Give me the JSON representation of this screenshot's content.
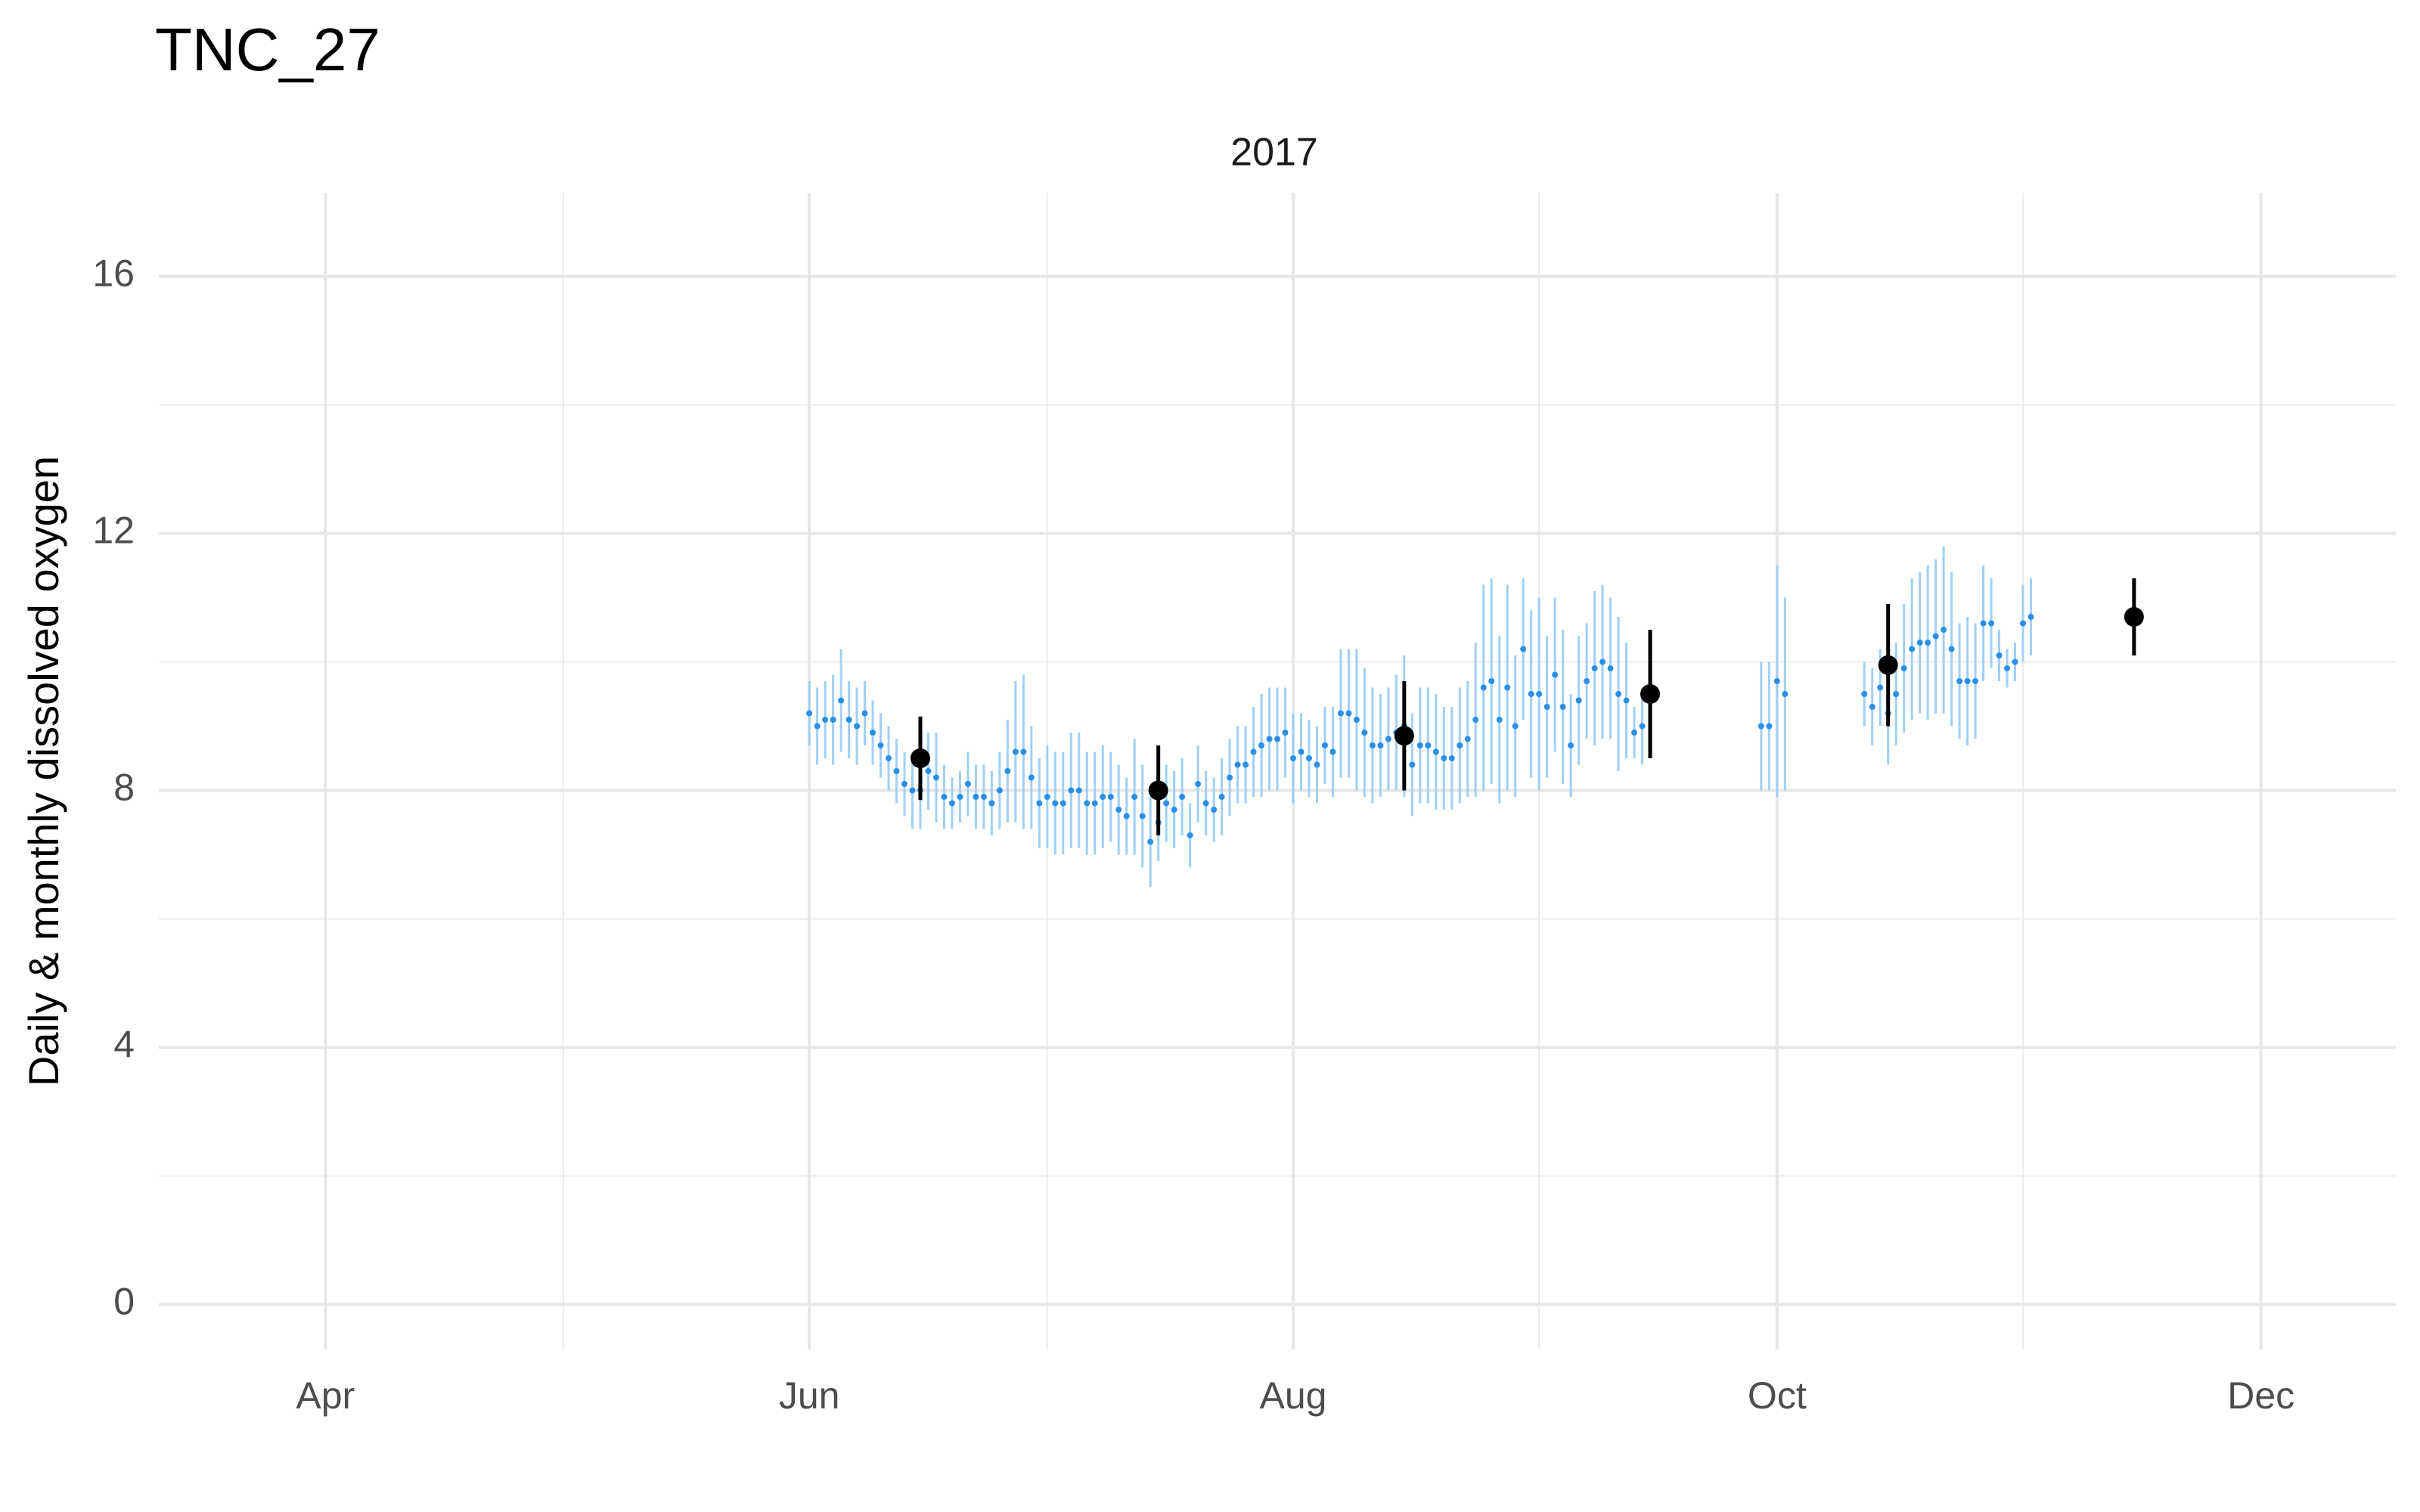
{
  "chart_data": {
    "type": "errorbar",
    "title": "TNC_27",
    "strip": "2017",
    "ylabel": "Daily & monthly dissolved oxygen",
    "xlim": [
      70,
      352
    ],
    "xticks": [
      {
        "value": 91,
        "label": "Apr"
      },
      {
        "value": 152,
        "label": "Jun"
      },
      {
        "value": 213,
        "label": "Aug"
      },
      {
        "value": 274,
        "label": "Oct"
      },
      {
        "value": 335,
        "label": "Dec"
      }
    ],
    "xminorticks": [
      121,
      182,
      244,
      305
    ],
    "ylim": [
      -0.7,
      17.3
    ],
    "yticks": [
      0,
      4,
      8,
      12,
      16
    ],
    "yminorticks": [
      2,
      6,
      10,
      14
    ],
    "grid": true,
    "series": [
      {
        "color": "#2b8fe6",
        "bar_color": "#9fd0f7",
        "x": [
          152,
          153,
          154,
          155,
          156,
          157,
          158,
          159,
          160,
          161,
          162,
          163,
          164,
          165,
          166,
          167,
          168,
          169,
          170,
          171,
          172,
          173,
          174,
          175,
          176,
          177,
          178,
          179,
          180,
          181,
          182,
          183,
          184,
          185,
          186,
          187,
          188,
          189,
          190,
          191,
          192,
          193,
          194,
          195,
          196,
          197,
          198,
          199,
          200,
          201,
          202,
          203,
          204,
          205,
          206,
          207,
          208,
          209,
          210,
          211,
          212,
          213,
          214,
          215,
          216,
          217,
          218,
          219,
          220,
          221,
          222,
          223,
          224,
          225,
          226,
          227,
          228,
          229,
          230,
          231,
          232,
          233,
          234,
          235,
          236,
          237,
          238,
          239,
          240,
          241,
          242,
          243,
          244,
          245,
          246,
          247,
          248,
          249,
          250,
          251,
          252,
          253,
          254,
          255,
          256,
          257,
          272,
          273,
          274,
          275,
          285,
          286,
          287,
          288,
          289,
          290,
          291,
          292,
          293,
          294,
          295,
          296,
          297,
          298,
          299,
          300,
          301,
          302,
          303,
          304,
          305,
          306
        ],
        "values": [
          9.2,
          9.0,
          9.1,
          9.1,
          9.4,
          9.1,
          9.0,
          9.2,
          8.9,
          8.7,
          8.5,
          8.3,
          8.1,
          8.0,
          8.0,
          8.3,
          8.2,
          7.9,
          7.8,
          7.9,
          8.1,
          7.9,
          7.9,
          7.8,
          8.0,
          8.3,
          8.6,
          8.6,
          8.2,
          7.8,
          7.9,
          7.8,
          7.8,
          8.0,
          8.0,
          7.8,
          7.8,
          7.9,
          7.9,
          7.7,
          7.6,
          7.9,
          7.6,
          7.2,
          7.5,
          7.8,
          7.7,
          7.9,
          7.3,
          8.1,
          7.8,
          7.7,
          7.9,
          8.2,
          8.4,
          8.4,
          8.6,
          8.7,
          8.8,
          8.8,
          8.9,
          8.5,
          8.6,
          8.5,
          8.4,
          8.7,
          8.6,
          9.2,
          9.2,
          9.1,
          8.9,
          8.7,
          8.7,
          8.8,
          8.9,
          9.0,
          8.4,
          8.7,
          8.7,
          8.6,
          8.5,
          8.5,
          8.7,
          8.8,
          9.1,
          9.6,
          9.7,
          9.1,
          9.6,
          9.0,
          10.2,
          9.5,
          9.5,
          9.3,
          9.8,
          9.3,
          8.7,
          9.4,
          9.7,
          9.9,
          10.0,
          9.9,
          9.5,
          9.4,
          8.9,
          9.0,
          9.0,
          9.0,
          9.7,
          9.5,
          9.5,
          9.3,
          9.6,
          9.2,
          9.5,
          9.9,
          10.2,
          10.3,
          10.3,
          10.4,
          10.5,
          10.2,
          9.7,
          9.7,
          9.7,
          10.6,
          10.6,
          10.1,
          9.9,
          10.0,
          10.6,
          10.7
        ],
        "errors": [
          0.5,
          0.6,
          0.6,
          0.7,
          0.8,
          0.6,
          0.6,
          0.5,
          0.5,
          0.5,
          0.5,
          0.5,
          0.5,
          0.6,
          0.6,
          0.6,
          0.7,
          0.5,
          0.4,
          0.4,
          0.5,
          0.5,
          0.5,
          0.5,
          0.6,
          0.8,
          1.1,
          1.2,
          0.8,
          0.7,
          0.8,
          0.8,
          0.8,
          0.9,
          0.9,
          0.8,
          0.8,
          0.8,
          0.7,
          0.7,
          0.6,
          0.9,
          0.8,
          0.7,
          0.6,
          0.6,
          0.6,
          0.6,
          0.5,
          0.6,
          0.5,
          0.5,
          0.6,
          0.6,
          0.6,
          0.6,
          0.7,
          0.8,
          0.8,
          0.8,
          0.7,
          0.7,
          0.6,
          0.6,
          0.6,
          0.6,
          0.7,
          1.0,
          1.0,
          1.1,
          1.0,
          0.9,
          0.8,
          0.8,
          0.9,
          1.1,
          0.8,
          0.9,
          0.9,
          0.9,
          0.8,
          0.8,
          0.9,
          0.9,
          1.2,
          1.6,
          1.6,
          1.3,
          1.6,
          1.1,
          1.1,
          1.3,
          1.5,
          1.1,
          1.2,
          1.2,
          0.8,
          1.0,
          0.9,
          1.2,
          1.2,
          1.1,
          1.2,
          0.9,
          0.4,
          0.6,
          1.0,
          1.0,
          1.8,
          1.5,
          0.5,
          0.6,
          0.6,
          0.8,
          0.8,
          1.0,
          1.1,
          1.1,
          1.2,
          1.2,
          1.3,
          1.2,
          0.9,
          1.0,
          0.9,
          0.9,
          0.7,
          0.4,
          0.3,
          0.3,
          0.6,
          0.6
        ],
        "radius": 4
      },
      {
        "color": "#000000",
        "bar_color": "#000000",
        "x": [
          166,
          196,
          227,
          258,
          288,
          319
        ],
        "values": [
          8.5,
          8.0,
          8.85,
          9.5,
          9.95,
          10.7
        ],
        "errors": [
          0.65,
          0.7,
          0.85,
          1.0,
          0.95,
          0.6
        ],
        "radius": 13
      }
    ]
  }
}
